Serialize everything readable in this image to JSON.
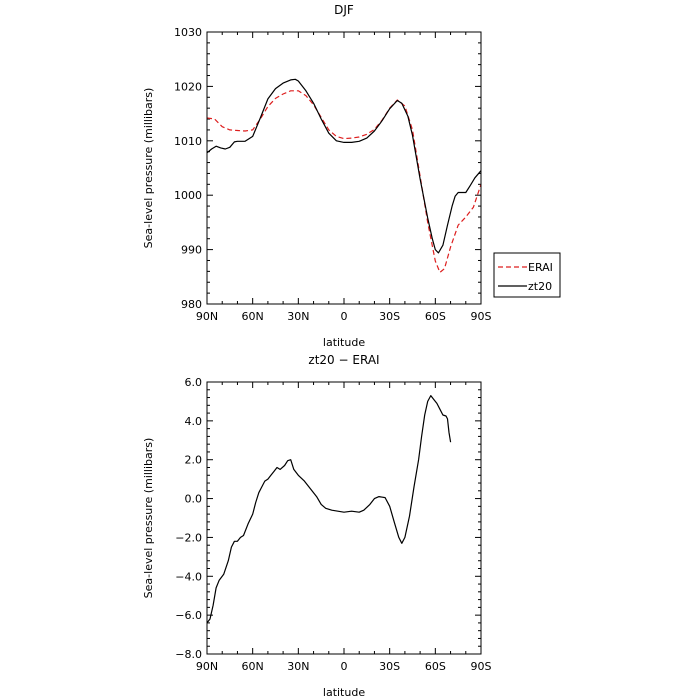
{
  "chart_data": [
    {
      "type": "line",
      "title": "DJF",
      "xlabel": "latitude",
      "ylabel": "Sea-level pressure (millibars)",
      "xlim": [
        90,
        -90
      ],
      "ylim": [
        980,
        1030
      ],
      "x_ticks": [
        90,
        60,
        30,
        0,
        -30,
        -60,
        -90
      ],
      "x_tick_labels": [
        "90N",
        "60N",
        "30N",
        "0",
        "30S",
        "60S",
        "90S"
      ],
      "y_ticks": [
        980,
        990,
        1000,
        1010,
        1020,
        1030
      ],
      "y_tick_labels": [
        "980",
        "990",
        "1000",
        "1010",
        "1020",
        "1030"
      ],
      "grid": false,
      "legend_position": "right",
      "series": [
        {
          "name": "ERAI",
          "color": "#dd1e1e",
          "dash": "dashed",
          "points": [
            [
              90,
              1014.2
            ],
            [
              85,
              1014.0
            ],
            [
              80,
              1012.6
            ],
            [
              75,
              1012.0
            ],
            [
              70,
              1011.9
            ],
            [
              65,
              1011.8
            ],
            [
              60,
              1012.0
            ],
            [
              55,
              1014.0
            ],
            [
              50,
              1016.3
            ],
            [
              45,
              1017.8
            ],
            [
              40,
              1018.6
            ],
            [
              35,
              1019.2
            ],
            [
              30,
              1019.2
            ],
            [
              25,
              1018.3
            ],
            [
              20,
              1016.6
            ],
            [
              15,
              1014.3
            ],
            [
              10,
              1012.0
            ],
            [
              5,
              1010.8
            ],
            [
              0,
              1010.4
            ],
            [
              -5,
              1010.5
            ],
            [
              -10,
              1010.7
            ],
            [
              -15,
              1011.2
            ],
            [
              -20,
              1012.1
            ],
            [
              -25,
              1013.8
            ],
            [
              -30,
              1016.0
            ],
            [
              -35,
              1017.5
            ],
            [
              -40,
              1016.4
            ],
            [
              -45,
              1012.0
            ],
            [
              -50,
              1003.5
            ],
            [
              -55,
              995.0
            ],
            [
              -60,
              987.9
            ],
            [
              -63,
              985.8
            ],
            [
              -66,
              986.5
            ],
            [
              -70,
              990.5
            ],
            [
              -75,
              994.5
            ],
            [
              -80,
              996.0
            ],
            [
              -85,
              997.8
            ],
            [
              -90,
              1002.0
            ]
          ]
        },
        {
          "name": "zt20",
          "color": "#000000",
          "dash": "solid",
          "points": [
            [
              90,
              1007.8
            ],
            [
              87,
              1008.5
            ],
            [
              84,
              1009.0
            ],
            [
              81,
              1008.7
            ],
            [
              78,
              1008.5
            ],
            [
              75,
              1008.8
            ],
            [
              72,
              1009.8
            ],
            [
              70,
              1009.9
            ],
            [
              65,
              1009.9
            ],
            [
              60,
              1010.8
            ],
            [
              55,
              1014.2
            ],
            [
              50,
              1017.7
            ],
            [
              45,
              1019.6
            ],
            [
              40,
              1020.6
            ],
            [
              35,
              1021.2
            ],
            [
              32,
              1021.3
            ],
            [
              30,
              1021.0
            ],
            [
              25,
              1019.2
            ],
            [
              20,
              1016.9
            ],
            [
              15,
              1014.0
            ],
            [
              10,
              1011.4
            ],
            [
              5,
              1010.0
            ],
            [
              0,
              1009.7
            ],
            [
              -5,
              1009.7
            ],
            [
              -10,
              1009.9
            ],
            [
              -15,
              1010.5
            ],
            [
              -20,
              1011.8
            ],
            [
              -25,
              1013.7
            ],
            [
              -30,
              1015.9
            ],
            [
              -35,
              1017.4
            ],
            [
              -38,
              1016.9
            ],
            [
              -42,
              1014.5
            ],
            [
              -45,
              1011.0
            ],
            [
              -50,
              1003.0
            ],
            [
              -55,
              995.8
            ],
            [
              -58,
              992.0
            ],
            [
              -60,
              990.0
            ],
            [
              -62,
              989.4
            ],
            [
              -65,
              990.8
            ],
            [
              -68,
              994.5
            ],
            [
              -71,
              998.0
            ],
            [
              -73,
              999.8
            ],
            [
              -75,
              1000.5
            ],
            [
              -78,
              1000.5
            ],
            [
              -80,
              1000.5
            ],
            [
              -83,
              1001.8
            ],
            [
              -86,
              1003.2
            ],
            [
              -90,
              1004.5
            ]
          ]
        }
      ]
    },
    {
      "type": "line",
      "title": "zt20 − ERAI",
      "xlabel": "latitude",
      "ylabel": "Sea-level pressure (millibars)",
      "xlim": [
        90,
        -90
      ],
      "ylim": [
        -8,
        6
      ],
      "x_ticks": [
        90,
        60,
        30,
        0,
        -30,
        -60,
        -90
      ],
      "x_tick_labels": [
        "90N",
        "60N",
        "30N",
        "0",
        "30S",
        "60S",
        "90S"
      ],
      "y_ticks": [
        -8,
        -6,
        -4,
        -2,
        0,
        2,
        4,
        6
      ],
      "y_tick_labels": [
        "−8.0",
        "−6.0",
        "−4.0",
        "−2.0",
        "0.0",
        "2.0",
        "4.0",
        "6.0"
      ],
      "grid": false,
      "series": [
        {
          "color": "#000000",
          "dash": "solid",
          "points": [
            [
              90,
              -6.4
            ],
            [
              88,
              -6.2
            ],
            [
              86,
              -5.5
            ],
            [
              84,
              -4.6
            ],
            [
              82,
              -4.2
            ],
            [
              79,
              -3.9
            ],
            [
              76,
              -3.2
            ],
            [
              74,
              -2.5
            ],
            [
              72,
              -2.2
            ],
            [
              70,
              -2.2
            ],
            [
              68,
              -2.0
            ],
            [
              66,
              -1.9
            ],
            [
              63,
              -1.3
            ],
            [
              60,
              -0.8
            ],
            [
              58,
              -0.2
            ],
            [
              56,
              0.3
            ],
            [
              54,
              0.6
            ],
            [
              52,
              0.9
            ],
            [
              50,
              1.0
            ],
            [
              48,
              1.2
            ],
            [
              46,
              1.4
            ],
            [
              44,
              1.6
            ],
            [
              42,
              1.5
            ],
            [
              39,
              1.7
            ],
            [
              37,
              1.95
            ],
            [
              35,
              2.0
            ],
            [
              33,
              1.5
            ],
            [
              30,
              1.2
            ],
            [
              26,
              0.9
            ],
            [
              22,
              0.5
            ],
            [
              18,
              0.1
            ],
            [
              15,
              -0.3
            ],
            [
              12,
              -0.5
            ],
            [
              8,
              -0.6
            ],
            [
              4,
              -0.65
            ],
            [
              0,
              -0.7
            ],
            [
              -5,
              -0.65
            ],
            [
              -10,
              -0.7
            ],
            [
              -13,
              -0.6
            ],
            [
              -17,
              -0.3
            ],
            [
              -20,
              0.0
            ],
            [
              -23,
              0.1
            ],
            [
              -27,
              0.05
            ],
            [
              -30,
              -0.4
            ],
            [
              -33,
              -1.2
            ],
            [
              -36,
              -2.0
            ],
            [
              -38,
              -2.3
            ],
            [
              -40,
              -2.0
            ],
            [
              -43,
              -0.9
            ],
            [
              -46,
              0.6
            ],
            [
              -49,
              2.0
            ],
            [
              -51,
              3.2
            ],
            [
              -53,
              4.3
            ],
            [
              -55,
              5.0
            ],
            [
              -57,
              5.3
            ],
            [
              -59,
              5.1
            ],
            [
              -61,
              4.9
            ],
            [
              -63,
              4.6
            ],
            [
              -65,
              4.3
            ],
            [
              -67,
              4.25
            ],
            [
              -68,
              4.1
            ],
            [
              -69,
              3.4
            ],
            [
              -70,
              2.9
            ]
          ]
        }
      ]
    }
  ]
}
